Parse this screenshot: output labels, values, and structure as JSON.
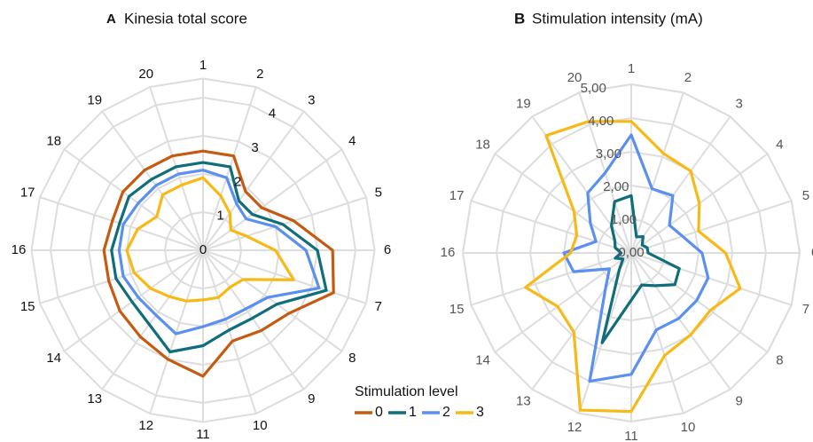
{
  "chart_data": [
    {
      "type": "radar",
      "panel": "A",
      "title": "Kinesia total score",
      "categories": [
        "1",
        "2",
        "3",
        "4",
        "5",
        "6",
        "7",
        "8",
        "9",
        "10",
        "11",
        "12",
        "13",
        "14",
        "15",
        "16",
        "17",
        "18",
        "19",
        "20"
      ],
      "ylim": [
        0,
        4.5
      ],
      "yticks": [
        0,
        1,
        2,
        3,
        4
      ],
      "legend_title": "Stimulation level",
      "series": [
        {
          "name": "0",
          "color": "#c55a11",
          "values": [
            2.6,
            2.6,
            1.9,
            1.9,
            2.5,
            3.4,
            3.6,
            2.8,
            2.6,
            2.5,
            3.3,
            3.0,
            2.8,
            2.7,
            2.6,
            2.6,
            2.5,
            2.6,
            2.6,
            2.6
          ]
        },
        {
          "name": "1",
          "color": "#0f6e7a",
          "values": [
            2.3,
            2.3,
            1.6,
            1.6,
            2.2,
            3.0,
            3.4,
            2.4,
            2.2,
            2.2,
            2.5,
            2.8,
            2.4,
            2.3,
            2.4,
            2.4,
            2.3,
            2.4,
            2.3,
            2.3
          ]
        },
        {
          "name": "2",
          "color": "#5b8ff0",
          "values": [
            2.1,
            2.0,
            1.5,
            1.4,
            2.0,
            2.7,
            3.2,
            2.1,
            1.9,
            1.9,
            2.0,
            2.3,
            2.1,
            2.1,
            2.2,
            2.2,
            2.2,
            2.1,
            2.1,
            2.1
          ]
        },
        {
          "name": "3",
          "color": "#f7b916",
          "values": [
            1.9,
            1.5,
            1.2,
            0.9,
            1.2,
            1.9,
            2.5,
            1.3,
            1.2,
            1.3,
            1.3,
            1.4,
            1.5,
            1.7,
            1.9,
            2.0,
            1.8,
            1.5,
            1.8,
            1.8
          ]
        }
      ]
    },
    {
      "type": "radar",
      "panel": "B",
      "title": "Stimulation intensity (mA)",
      "categories": [
        "1",
        "2",
        "3",
        "4",
        "5",
        "6",
        "7",
        "8",
        "9",
        "10",
        "11",
        "12",
        "13",
        "14",
        "15",
        "16",
        "17",
        "18",
        "19",
        "20"
      ],
      "ylim": [
        0,
        5
      ],
      "yticks": [
        {
          "value": 0,
          "label": "0,00"
        },
        {
          "value": 1,
          "label": "1,00"
        },
        {
          "value": 2,
          "label": "2,00"
        },
        {
          "value": 3,
          "label": "3,00"
        },
        {
          "value": 4,
          "label": "4,00"
        },
        {
          "value": 5,
          "label": "5,00"
        }
      ],
      "series": [
        {
          "name": "1",
          "color": "#0f6e7a",
          "values": [
            1.7,
            0.5,
            0.6,
            0.4,
            0.5,
            0.5,
            1.5,
            1.6,
            1.2,
            1.0,
            1.4,
            2.8,
            0.6,
            0.3,
            0.5,
            0.3,
            0.5,
            0.6,
            1.0,
            1.6
          ]
        },
        {
          "name": "2",
          "color": "#5b8ff0",
          "values": [
            3.5,
            2.0,
            2.1,
            1.4,
            1.6,
            2.1,
            2.4,
            2.4,
            2.4,
            2.4,
            3.6,
            4.0,
            1.3,
            0.8,
            1.8,
            2.0,
            1.1,
            1.5,
            2.2,
            2.5
          ]
        },
        {
          "name": "3",
          "color": "#f7b916",
          "values": [
            3.9,
            3.1,
            3.0,
            2.5,
            2.1,
            2.8,
            3.4,
            2.9,
            3.0,
            3.2,
            4.7,
            4.9,
            2.9,
            2.7,
            3.3,
            1.8,
            1.7,
            2.1,
            4.3,
            4.1
          ]
        }
      ]
    }
  ]
}
